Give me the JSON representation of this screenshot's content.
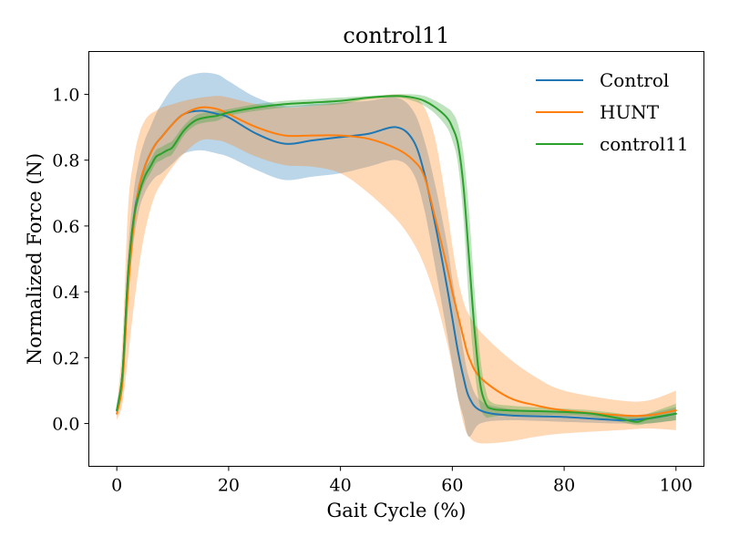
{
  "chart_data": {
    "type": "line",
    "title": "control11",
    "xlabel": "Gait Cycle (%)",
    "ylabel": "Normalized Force (N)",
    "xlim": [
      -5,
      105
    ],
    "ylim": [
      -0.13,
      1.13
    ],
    "xticks": [
      0,
      20,
      40,
      60,
      80,
      100
    ],
    "xtick_labels": [
      "0",
      "20",
      "40",
      "60",
      "80",
      "100"
    ],
    "yticks": [
      0.0,
      0.2,
      0.4,
      0.6,
      0.8,
      1.0
    ],
    "ytick_labels": [
      "0.0",
      "0.2",
      "0.4",
      "0.6",
      "0.8",
      "1.0"
    ],
    "grid": false,
    "legend_position": "top-right",
    "series": [
      {
        "name": "Control",
        "color": "#1f77b4",
        "x": [
          0,
          1,
          2,
          3,
          4,
          5,
          6,
          7,
          8,
          10,
          12,
          15,
          18,
          20,
          25,
          30,
          35,
          40,
          45,
          50,
          53,
          55,
          57,
          59,
          60,
          61,
          62,
          63,
          65,
          70,
          80,
          90,
          95,
          100
        ],
        "y": [
          0.04,
          0.15,
          0.45,
          0.62,
          0.72,
          0.78,
          0.82,
          0.85,
          0.87,
          0.91,
          0.94,
          0.95,
          0.94,
          0.93,
          0.88,
          0.85,
          0.86,
          0.87,
          0.88,
          0.9,
          0.86,
          0.76,
          0.6,
          0.42,
          0.32,
          0.22,
          0.14,
          0.08,
          0.04,
          0.025,
          0.02,
          0.01,
          0.015,
          0.03
        ],
        "upper": [
          0.06,
          0.18,
          0.52,
          0.7,
          0.8,
          0.86,
          0.9,
          0.94,
          0.97,
          1.02,
          1.05,
          1.065,
          1.06,
          1.04,
          0.99,
          0.965,
          0.97,
          0.975,
          0.98,
          0.99,
          0.95,
          0.86,
          0.72,
          0.55,
          0.44,
          0.33,
          0.22,
          0.14,
          0.07,
          0.045,
          0.035,
          0.025,
          0.03,
          0.05
        ],
        "lower": [
          0.02,
          0.12,
          0.38,
          0.55,
          0.65,
          0.7,
          0.73,
          0.75,
          0.76,
          0.79,
          0.82,
          0.83,
          0.82,
          0.81,
          0.77,
          0.74,
          0.75,
          0.76,
          0.78,
          0.8,
          0.76,
          0.65,
          0.47,
          0.28,
          0.18,
          0.08,
          0.02,
          -0.04,
          0.0,
          0.01,
          0.005,
          0.0,
          0.0,
          0.01
        ]
      },
      {
        "name": "HUNT",
        "color": "#ff7f0e",
        "x": [
          0,
          1,
          2,
          3,
          4,
          5,
          6,
          7,
          8,
          10,
          12,
          15,
          18,
          20,
          25,
          30,
          35,
          40,
          45,
          50,
          53,
          55,
          57,
          59,
          60,
          61,
          62,
          63,
          65,
          70,
          75,
          80,
          90,
          95,
          100
        ],
        "y": [
          0.03,
          0.12,
          0.4,
          0.6,
          0.72,
          0.78,
          0.82,
          0.85,
          0.87,
          0.91,
          0.94,
          0.96,
          0.955,
          0.94,
          0.9,
          0.875,
          0.875,
          0.875,
          0.865,
          0.835,
          0.8,
          0.75,
          0.62,
          0.48,
          0.4,
          0.33,
          0.26,
          0.2,
          0.14,
          0.08,
          0.055,
          0.04,
          0.025,
          0.025,
          0.04
        ],
        "upper": [
          0.05,
          0.25,
          0.65,
          0.8,
          0.88,
          0.92,
          0.94,
          0.95,
          0.96,
          0.97,
          0.98,
          0.99,
          0.995,
          0.99,
          0.97,
          0.96,
          0.965,
          0.975,
          0.99,
          1.0,
          0.99,
          0.96,
          0.86,
          0.66,
          0.54,
          0.44,
          0.37,
          0.33,
          0.28,
          0.2,
          0.14,
          0.1,
          0.07,
          0.07,
          0.1
        ],
        "lower": [
          0.01,
          0.06,
          0.2,
          0.35,
          0.48,
          0.58,
          0.65,
          0.7,
          0.73,
          0.78,
          0.82,
          0.86,
          0.86,
          0.85,
          0.81,
          0.785,
          0.78,
          0.76,
          0.7,
          0.62,
          0.55,
          0.48,
          0.38,
          0.25,
          0.17,
          0.08,
          0.0,
          -0.04,
          -0.06,
          -0.055,
          -0.04,
          -0.03,
          -0.02,
          -0.015,
          -0.02
        ]
      },
      {
        "name": "control11",
        "color": "#2ca02c",
        "x": [
          0,
          1,
          2,
          3,
          4,
          5,
          6,
          7,
          8,
          9,
          10,
          12,
          14,
          16,
          18,
          20,
          25,
          30,
          35,
          40,
          45,
          50,
          53,
          55,
          57,
          59,
          60,
          61,
          62,
          63,
          64,
          65,
          66,
          67,
          70,
          80,
          85,
          90,
          93,
          95,
          100
        ],
        "y": [
          0.04,
          0.15,
          0.45,
          0.62,
          0.7,
          0.75,
          0.78,
          0.81,
          0.82,
          0.83,
          0.84,
          0.89,
          0.92,
          0.93,
          0.935,
          0.945,
          0.96,
          0.97,
          0.975,
          0.98,
          0.99,
          0.995,
          0.99,
          0.98,
          0.96,
          0.93,
          0.9,
          0.85,
          0.72,
          0.5,
          0.28,
          0.12,
          0.06,
          0.045,
          0.04,
          0.035,
          0.03,
          0.015,
          0.005,
          0.015,
          0.03
        ],
        "upper": [
          0.05,
          0.17,
          0.47,
          0.64,
          0.72,
          0.77,
          0.8,
          0.83,
          0.84,
          0.85,
          0.86,
          0.905,
          0.935,
          0.945,
          0.95,
          0.955,
          0.97,
          0.98,
          0.985,
          0.99,
          0.995,
          1.0,
          1.0,
          0.995,
          0.98,
          0.96,
          0.945,
          0.91,
          0.82,
          0.64,
          0.4,
          0.2,
          0.1,
          0.065,
          0.055,
          0.045,
          0.04,
          0.03,
          0.02,
          0.03,
          0.06
        ],
        "lower": [
          0.03,
          0.13,
          0.43,
          0.6,
          0.68,
          0.73,
          0.76,
          0.79,
          0.8,
          0.81,
          0.82,
          0.875,
          0.905,
          0.915,
          0.92,
          0.935,
          0.95,
          0.96,
          0.965,
          0.97,
          0.985,
          0.99,
          0.98,
          0.965,
          0.94,
          0.9,
          0.86,
          0.79,
          0.62,
          0.36,
          0.16,
          0.05,
          0.02,
          0.02,
          0.025,
          0.025,
          0.02,
          0.005,
          -0.005,
          0.0,
          0.01
        ]
      }
    ]
  }
}
